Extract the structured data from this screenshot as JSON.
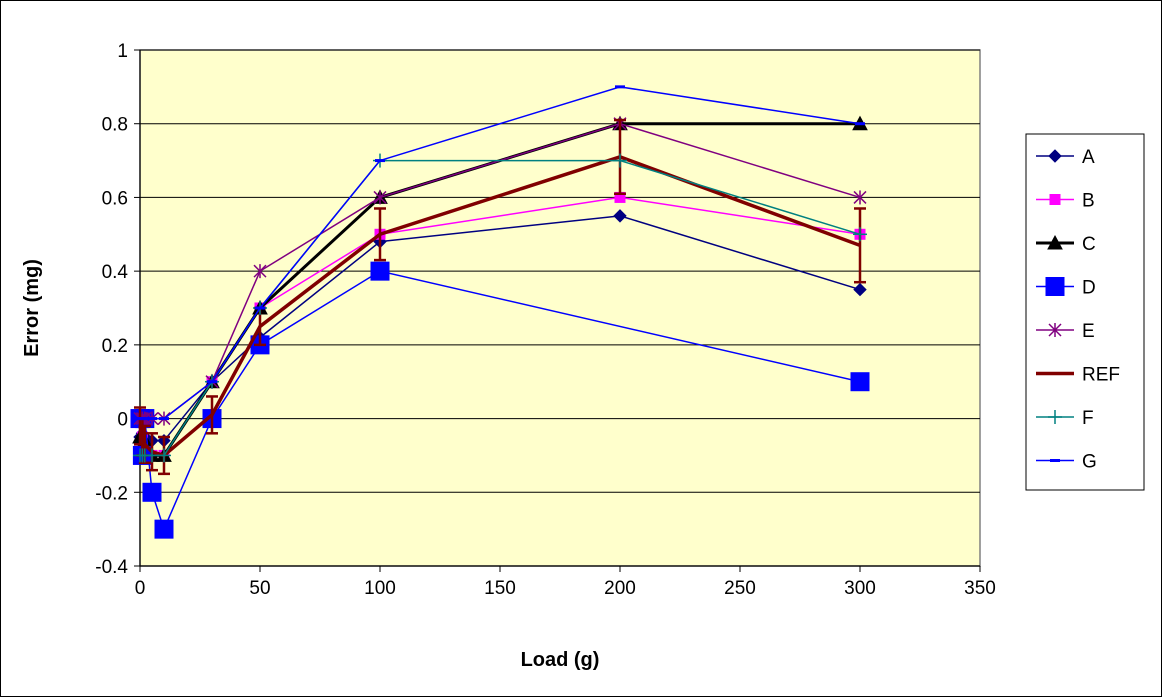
{
  "chart_data": {
    "type": "line",
    "title": "",
    "xlabel": "Load (g)",
    "ylabel": "Error (mg)",
    "xlim": [
      0,
      350
    ],
    "ylim": [
      -0.4,
      1
    ],
    "xticks": [
      0,
      50,
      100,
      150,
      200,
      250,
      300,
      350
    ],
    "yticks": [
      -0.4,
      -0.2,
      0,
      0.2,
      0.4,
      0.6,
      0.8,
      1
    ],
    "ytick_labels": [
      "-0.4",
      "-0.2",
      "0",
      "0.2",
      "0.4",
      "0.6",
      "0.8",
      "1"
    ],
    "grid": "horizontal",
    "legend": "right",
    "plot_background": "#ffffcc",
    "series": [
      {
        "name": "A",
        "color": "#000080",
        "marker": "diamond",
        "x": [
          0,
          1,
          2,
          5,
          10,
          30,
          50,
          100,
          200,
          300
        ],
        "y": [
          -0.05,
          -0.04,
          -0.05,
          -0.06,
          -0.06,
          0.1,
          0.22,
          0.48,
          0.55,
          0.35
        ]
      },
      {
        "name": "B",
        "color": "#ff00ff",
        "marker": "square",
        "x": [
          0,
          1,
          2,
          5,
          10,
          30,
          50,
          100,
          200,
          300
        ],
        "y": [
          0,
          -0.05,
          -0.1,
          -0.1,
          -0.1,
          0.1,
          0.3,
          0.5,
          0.6,
          0.5
        ]
      },
      {
        "name": "C",
        "color": "#000000",
        "marker": "triangle",
        "x": [
          0,
          1,
          2,
          5,
          10,
          30,
          50,
          100,
          200,
          300
        ],
        "y": [
          -0.05,
          -0.05,
          -0.06,
          -0.1,
          -0.1,
          0.1,
          0.3,
          0.6,
          0.8,
          0.8
        ]
      },
      {
        "name": "D",
        "color": "#0000ff",
        "marker": "big-square",
        "x": [
          0,
          1,
          2,
          5,
          10,
          30,
          50,
          100,
          300
        ],
        "y": [
          0,
          -0.1,
          0,
          -0.2,
          -0.3,
          0,
          0.2,
          0.4,
          0.1
        ]
      },
      {
        "name": "E",
        "color": "#800080",
        "marker": "asterisk",
        "x": [
          0,
          1,
          2,
          5,
          10,
          30,
          50,
          100,
          200,
          300
        ],
        "y": [
          0,
          0,
          0,
          0,
          0,
          0.1,
          0.4,
          0.6,
          0.8,
          0.6
        ]
      },
      {
        "name": "REF",
        "color": "#800000",
        "marker": "none",
        "x": [
          0,
          1,
          2,
          5,
          10,
          30,
          50,
          100,
          200,
          300
        ],
        "y": [
          -0.02,
          -0.05,
          -0.07,
          -0.09,
          -0.1,
          0.01,
          0.25,
          0.5,
          0.71,
          0.47
        ],
        "error": [
          0.05,
          0.05,
          0.05,
          0.05,
          0.05,
          0.05,
          0.05,
          0.07,
          0.1,
          0.1
        ]
      },
      {
        "name": "F",
        "color": "#008080",
        "marker": "plus",
        "x": [
          0,
          1,
          2,
          5,
          10,
          30,
          50,
          100,
          200,
          300
        ],
        "y": [
          -0.1,
          -0.1,
          -0.1,
          -0.1,
          -0.1,
          0.1,
          0.3,
          0.7,
          0.7,
          0.5
        ]
      },
      {
        "name": "G",
        "color": "#0000ff",
        "marker": "dash",
        "x": [
          0,
          1,
          2,
          5,
          10,
          30,
          50,
          100,
          200,
          300
        ],
        "y": [
          0,
          0,
          0,
          0,
          0,
          0.1,
          0.3,
          0.7,
          0.9,
          0.8
        ]
      }
    ]
  }
}
